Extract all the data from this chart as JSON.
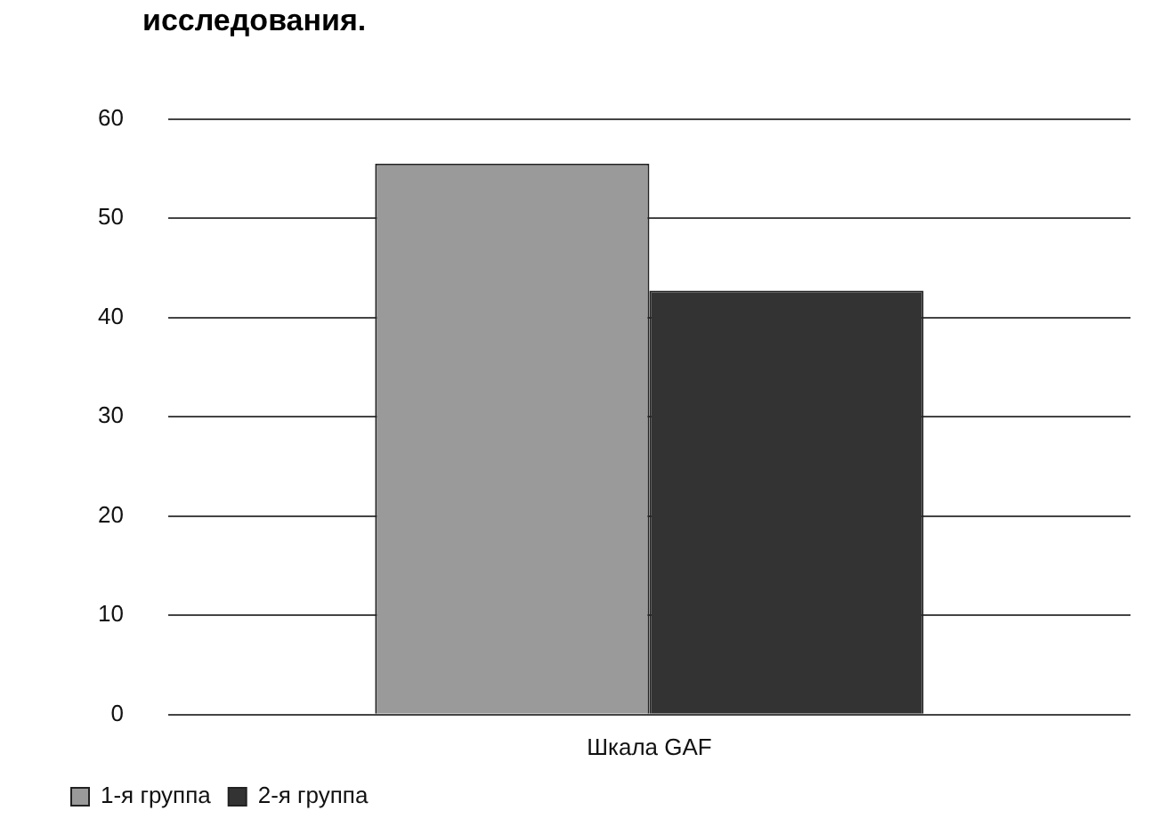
{
  "chart_data": {
    "type": "bar",
    "title": "исследования.",
    "categories": [
      "Шкала GAF"
    ],
    "series": [
      {
        "name": "1-я группа",
        "color": "#9a9a9a",
        "values": [
          55.5
        ]
      },
      {
        "name": "2-я группа",
        "color": "#333333",
        "values": [
          42.7
        ]
      }
    ],
    "ylim": [
      0,
      60
    ],
    "yticks": [
      0,
      10,
      20,
      30,
      40,
      50,
      60
    ],
    "grid": "y",
    "legend": "bottom left"
  }
}
